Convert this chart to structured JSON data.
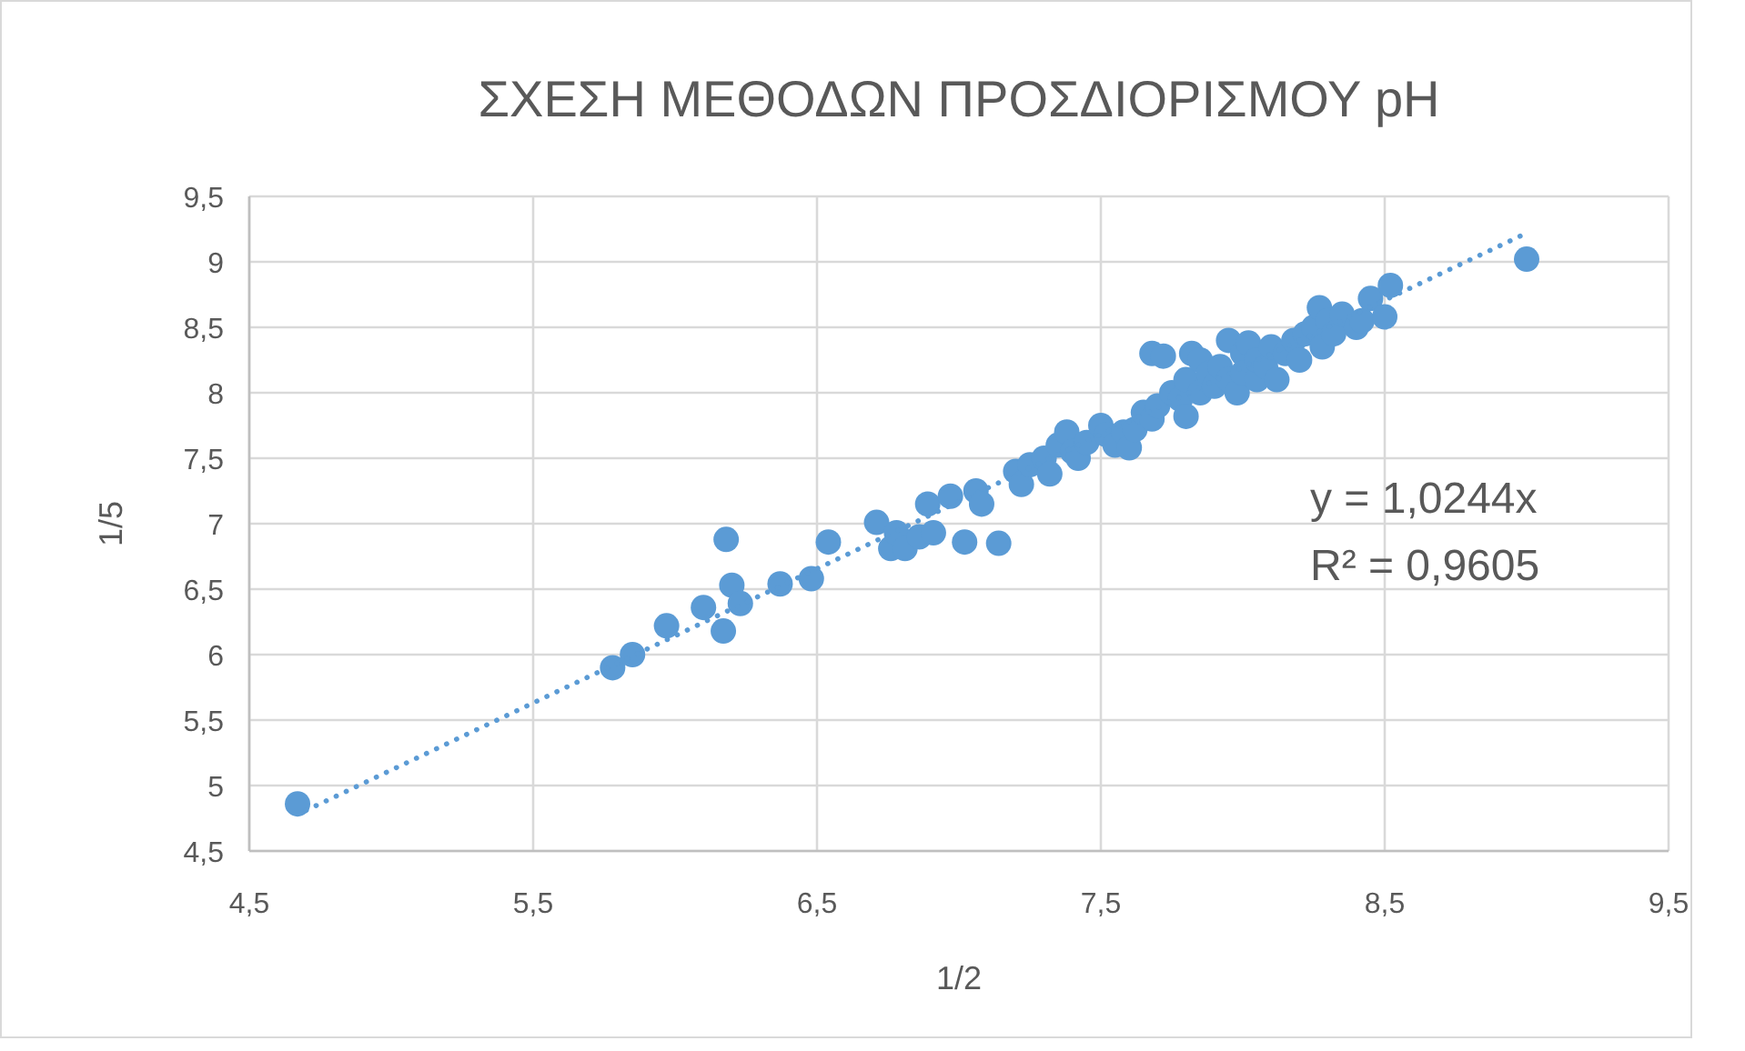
{
  "chart_data": {
    "type": "scatter",
    "title": "ΣΧΕΣΗ ΜΕΘΟΔΩΝ ΠΡΟΣΔΙΟΡΙΣΜΟΥ pH",
    "xlabel": "1/2",
    "ylabel": "1/5",
    "xlim": [
      4.5,
      9.5
    ],
    "xticks": [
      {
        "value": 4.5,
        "label": "4,5"
      },
      {
        "value": 5.5,
        "label": "5,5"
      },
      {
        "value": 6.5,
        "label": "6,5"
      },
      {
        "value": 7.5,
        "label": "7,5"
      },
      {
        "value": 8.5,
        "label": "8,5"
      },
      {
        "value": 9.5,
        "label": "9,5"
      }
    ],
    "ylim": [
      4.5,
      9.5
    ],
    "yticks": [
      {
        "value": 4.5,
        "label": "4,5"
      },
      5,
      {
        "value": 5.5,
        "label": "5,5"
      },
      6,
      {
        "value": 6.5,
        "label": "6,5"
      },
      7,
      {
        "value": 7.5,
        "label": "7,5"
      },
      8,
      {
        "value": 8.5,
        "label": "8,5"
      },
      9,
      {
        "value": 9.5,
        "label": "9,5"
      }
    ],
    "grid": true,
    "annotations": [
      "y = 1,0244x",
      "R² = 0,9605"
    ],
    "series": [
      {
        "color": "#5b9bd5",
        "marker": "circle",
        "x": [
          4.67,
          5.78,
          5.85,
          5.97,
          6.1,
          6.17,
          6.18,
          6.2,
          6.23,
          6.37,
          6.48,
          6.54,
          6.71,
          6.76,
          6.78,
          6.81,
          6.86,
          6.91,
          7.02,
          7.14,
          6.89,
          6.97,
          7.06,
          7.08,
          7.2,
          7.22,
          7.25,
          7.3,
          7.32,
          7.35,
          7.38,
          7.4,
          7.42,
          7.45,
          7.5,
          7.52,
          7.55,
          7.58,
          7.6,
          7.62,
          7.65,
          7.68,
          7.7,
          7.68,
          7.72,
          7.75,
          7.78,
          7.8,
          7.8,
          7.82,
          7.85,
          7.85,
          7.88,
          7.9,
          7.92,
          7.95,
          7.95,
          7.98,
          8.0,
          8.0,
          8.02,
          8.05,
          8.05,
          8.08,
          8.1,
          8.12,
          8.15,
          8.18,
          8.2,
          8.22,
          8.25,
          8.27,
          8.28,
          8.3,
          8.32,
          8.35,
          8.4,
          8.42,
          8.45,
          8.52,
          8.5,
          9.0
        ],
        "values": [
          4.86,
          5.9,
          6.0,
          6.22,
          6.36,
          6.18,
          6.88,
          6.53,
          6.39,
          6.54,
          6.58,
          6.86,
          7.01,
          6.81,
          6.93,
          6.81,
          6.9,
          6.93,
          6.86,
          6.85,
          7.15,
          7.21,
          7.25,
          7.15,
          7.4,
          7.3,
          7.45,
          7.5,
          7.38,
          7.6,
          7.7,
          7.55,
          7.5,
          7.62,
          7.75,
          7.68,
          7.6,
          7.7,
          7.58,
          7.72,
          7.85,
          7.8,
          7.9,
          8.3,
          8.28,
          8.0,
          7.95,
          8.1,
          7.82,
          8.3,
          8.25,
          8.0,
          8.15,
          8.05,
          8.2,
          8.4,
          8.1,
          8.0,
          8.3,
          8.15,
          8.38,
          8.1,
          8.25,
          8.2,
          8.35,
          8.1,
          8.3,
          8.4,
          8.25,
          8.45,
          8.5,
          8.65,
          8.35,
          8.55,
          8.45,
          8.6,
          8.5,
          8.55,
          8.72,
          8.82,
          8.58,
          9.02
        ]
      },
      {
        "type": "line",
        "color": "#5b9bd5",
        "marker": "none",
        "line_style": "dotted",
        "x": [
          4.7,
          9.0
        ],
        "values": [
          4.81,
          9.22
        ]
      }
    ]
  }
}
